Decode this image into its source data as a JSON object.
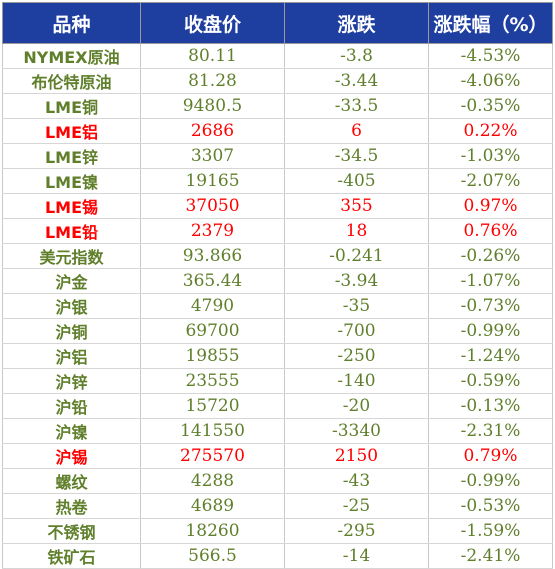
{
  "headers": [
    "品种",
    "收盘价",
    "涨跌",
    "涨跌幅（%）"
  ],
  "colors": {
    "header_bg": "#1e3ea0",
    "header_text": "#ffffff",
    "up": "#ff0000",
    "down": "#5f7f2b"
  },
  "rows": [
    {
      "name": "NYMEX原油",
      "close": "80.11",
      "change": "-3.8",
      "pct": "-4.53%",
      "dir": "down"
    },
    {
      "name": "布伦特原油",
      "close": "81.28",
      "change": "-3.44",
      "pct": "-4.06%",
      "dir": "down"
    },
    {
      "name": "LME铜",
      "close": "9480.5",
      "change": "-33.5",
      "pct": "-0.35%",
      "dir": "down"
    },
    {
      "name": "LME铝",
      "close": "2686",
      "change": "6",
      "pct": "0.22%",
      "dir": "up"
    },
    {
      "name": "LME锌",
      "close": "3307",
      "change": "-34.5",
      "pct": "-1.03%",
      "dir": "down"
    },
    {
      "name": "LME镍",
      "close": "19165",
      "change": "-405",
      "pct": "-2.07%",
      "dir": "down"
    },
    {
      "name": "LME锡",
      "close": "37050",
      "change": "355",
      "pct": "0.97%",
      "dir": "up"
    },
    {
      "name": "LME铅",
      "close": "2379",
      "change": "18",
      "pct": "0.76%",
      "dir": "up"
    },
    {
      "name": "美元指数",
      "close": "93.866",
      "change": "-0.241",
      "pct": "-0.26%",
      "dir": "down"
    },
    {
      "name": "沪金",
      "close": "365.44",
      "change": "-3.94",
      "pct": "-1.07%",
      "dir": "down"
    },
    {
      "name": "沪银",
      "close": "4790",
      "change": "-35",
      "pct": "-0.73%",
      "dir": "down"
    },
    {
      "name": "沪铜",
      "close": "69700",
      "change": "-700",
      "pct": "-0.99%",
      "dir": "down"
    },
    {
      "name": "沪铝",
      "close": "19855",
      "change": "-250",
      "pct": "-1.24%",
      "dir": "down"
    },
    {
      "name": "沪锌",
      "close": "23555",
      "change": "-140",
      "pct": "-0.59%",
      "dir": "down"
    },
    {
      "name": "沪铅",
      "close": "15720",
      "change": "-20",
      "pct": "-0.13%",
      "dir": "down"
    },
    {
      "name": "沪镍",
      "close": "141550",
      "change": "-3340",
      "pct": "-2.31%",
      "dir": "down"
    },
    {
      "name": "沪锡",
      "close": "275570",
      "change": "2150",
      "pct": "0.79%",
      "dir": "up"
    },
    {
      "name": "螺纹",
      "close": "4288",
      "change": "-43",
      "pct": "-0.99%",
      "dir": "down"
    },
    {
      "name": "热卷",
      "close": "4689",
      "change": "-25",
      "pct": "-0.53%",
      "dir": "down"
    },
    {
      "name": "不锈钢",
      "close": "18260",
      "change": "-295",
      "pct": "-1.59%",
      "dir": "down"
    },
    {
      "name": "铁矿石",
      "close": "566.5",
      "change": "-14",
      "pct": "-2.41%",
      "dir": "down"
    }
  ]
}
